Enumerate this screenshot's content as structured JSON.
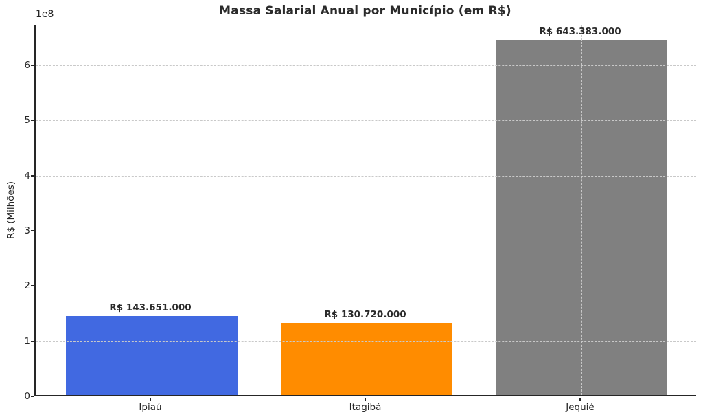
{
  "chart_data": {
    "type": "bar",
    "title": "Massa Salarial Anual por Município (em R$)",
    "categories": [
      "Ipiaú",
      "Itagibá",
      "Jequié"
    ],
    "values": [
      143651000,
      130720000,
      643383000
    ],
    "value_labels": [
      "R$ 143.651.000",
      "R$ 130.720.000",
      "R$ 643.383.000"
    ],
    "bar_colors": [
      "#4169e1",
      "#ff8c00",
      "#808080"
    ],
    "xlabel": "",
    "ylabel": "R$ (Milhões)",
    "y_offset_label": "1e8",
    "ytick_values": [
      0,
      100000000,
      200000000,
      300000000,
      400000000,
      500000000,
      600000000
    ],
    "ytick_labels": [
      "0",
      "1",
      "2",
      "3",
      "4",
      "5",
      "6"
    ],
    "ylim": [
      0,
      673400000
    ],
    "grid": "dashed, horizontal and vertical, drawn above bars",
    "legend": "none",
    "text_color": "#262626",
    "background_color": "#ffffff"
  }
}
